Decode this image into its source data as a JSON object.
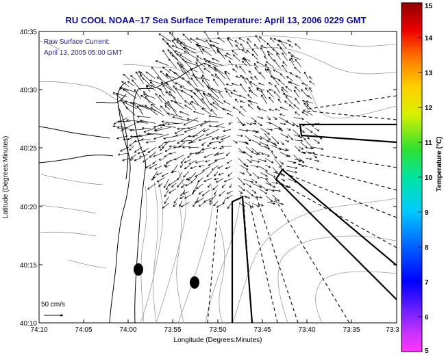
{
  "title": "RU COOL  NOAA–17  Sea Surface Temperature:  April 13, 2006 0229 GMT",
  "annotation": {
    "line1": "Raw Surface Current:",
    "line2": "April 13, 2005 05:00 GMT"
  },
  "scale_label": "50 cm/s",
  "axes": {
    "xlabel": "Longitude (Degrees:Minutes)",
    "ylabel": "Latitude (Degrees:Minutes)",
    "xticks": [
      "74:10",
      "74:05",
      "74:00",
      "73:55",
      "73:50",
      "73:45",
      "73:40",
      "73:35",
      "73:3"
    ],
    "yticks": [
      "40:35",
      "40:30",
      "40:25",
      "40:20",
      "40:15",
      "40:10"
    ]
  },
  "colorbar": {
    "label": "Temperature (°C)",
    "ticks": [
      "15",
      "14",
      "13",
      "12",
      "11",
      "10",
      "9",
      "8",
      "7",
      "6",
      "5"
    ],
    "min": 5,
    "max": 15
  },
  "colors": {
    "title": "#0a0aa0",
    "annotation": "#1a1aa8",
    "land_contour": "#000000",
    "bathymetry": "#9a9a9a",
    "vectors": "#000000"
  }
}
